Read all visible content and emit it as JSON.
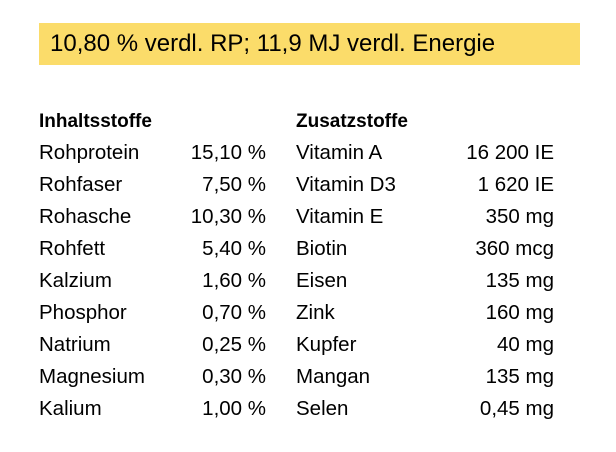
{
  "banner": {
    "text": "10,80 % verdl. RP; 11,9 MJ verdl. Energie",
    "background": "#fbdc6a"
  },
  "ingredients": {
    "heading": "Inhaltsstoffe",
    "rows": [
      {
        "name": "Rohprotein",
        "value": "15,10 %"
      },
      {
        "name": "Rohfaser",
        "value": "7,50 %"
      },
      {
        "name": "Rohasche",
        "value": "10,30 %"
      },
      {
        "name": "Rohfett",
        "value": "5,40 %"
      },
      {
        "name": "Kalzium",
        "value": "1,60 %"
      },
      {
        "name": "Phosphor",
        "value": "0,70 %"
      },
      {
        "name": "Natrium",
        "value": "0,25 %"
      },
      {
        "name": "Magnesium",
        "value": "0,30 %"
      },
      {
        "name": "Kalium",
        "value": "1,00 %"
      }
    ]
  },
  "additives": {
    "heading": "Zusatzstoffe",
    "rows": [
      {
        "name": "Vitamin A",
        "value": "16 200 IE"
      },
      {
        "name": "Vitamin D3",
        "value": "1 620 IE"
      },
      {
        "name": "Vitamin E",
        "value": "350 mg"
      },
      {
        "name": "Biotin",
        "value": "360 mcg"
      },
      {
        "name": "Eisen",
        "value": "135 mg"
      },
      {
        "name": "Zink",
        "value": "160 mg"
      },
      {
        "name": "Kupfer",
        "value": "40 mg"
      },
      {
        "name": "Mangan",
        "value": "135 mg"
      },
      {
        "name": "Selen",
        "value": "0,45 mg"
      }
    ]
  }
}
